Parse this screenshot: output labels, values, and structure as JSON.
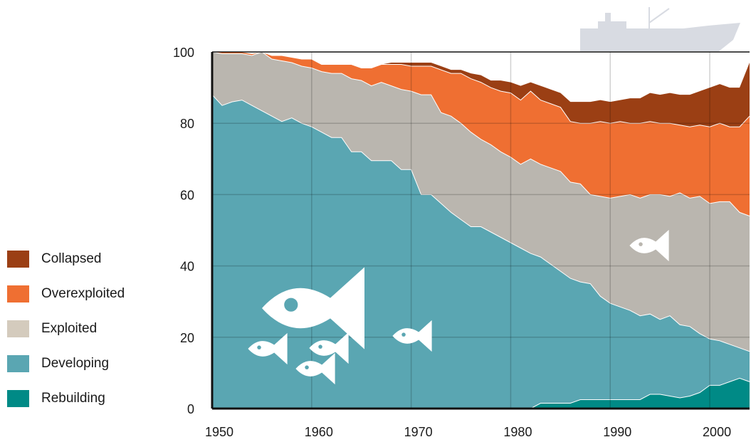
{
  "chart_data": {
    "type": "area",
    "stacked": true,
    "percent_stacked": true,
    "x": [
      1950,
      1951,
      1952,
      1953,
      1954,
      1955,
      1956,
      1957,
      1958,
      1959,
      1960,
      1961,
      1962,
      1963,
      1964,
      1965,
      1966,
      1967,
      1968,
      1969,
      1970,
      1971,
      1972,
      1973,
      1974,
      1975,
      1976,
      1977,
      1978,
      1979,
      1980,
      1981,
      1982,
      1983,
      1984,
      1985,
      1986,
      1987,
      1988,
      1989,
      1990,
      1991,
      1992,
      1993,
      1994,
      1995,
      1996,
      1997,
      1998,
      1999,
      2000,
      2001,
      2002,
      2003,
      2004
    ],
    "series": [
      {
        "name": "Rebuilding",
        "color": "#008a86",
        "values": [
          0,
          0,
          0,
          0,
          0,
          0,
          0,
          0,
          0,
          0,
          0,
          0,
          0,
          0,
          0,
          0,
          0,
          0,
          0,
          0,
          0,
          0,
          0,
          0,
          0,
          0,
          0,
          0,
          0,
          0,
          0,
          0,
          0,
          1.5,
          1.5,
          1.5,
          1.5,
          2.5,
          2.5,
          2.5,
          2.5,
          2.5,
          2.5,
          2.5,
          4,
          4,
          3.5,
          3,
          3.5,
          4.5,
          6.5,
          6.5,
          7.5,
          8.5,
          7.5
        ]
      },
      {
        "name": "Developing",
        "color": "#5aa6b2",
        "values": [
          88,
          85,
          86,
          86.5,
          85,
          83.5,
          82,
          80.5,
          81.5,
          80,
          79,
          77.5,
          76,
          76,
          72,
          72,
          69.5,
          69.5,
          69.5,
          67,
          67,
          60,
          60,
          57.5,
          55,
          53,
          51,
          51,
          49.5,
          48,
          46.5,
          45,
          43.5,
          41,
          39,
          37,
          35,
          33,
          32.5,
          29,
          27,
          26,
          25,
          23.5,
          22.5,
          21,
          22.5,
          20.5,
          19.5,
          16.5,
          13,
          12.5,
          10.5,
          8.5,
          8.5
        ]
      },
      {
        "name": "Exploited",
        "color": "#bab6af",
        "values": [
          12,
          14.5,
          13.5,
          13,
          14,
          16.5,
          16,
          17,
          15.5,
          16,
          16.5,
          17,
          18,
          18,
          20.5,
          20,
          21,
          22,
          21,
          22.5,
          22,
          28,
          28,
          25.5,
          27,
          27,
          26.5,
          24.5,
          24.5,
          24,
          24,
          23.5,
          26.5,
          26,
          27,
          28,
          27,
          27.5,
          25,
          28,
          29.5,
          31,
          32.5,
          33,
          33.5,
          35,
          33.5,
          37,
          36,
          38.5,
          38,
          39,
          40,
          38,
          38
        ]
      },
      {
        "name": "Overexploited",
        "color": "#ef6f32",
        "values": [
          0,
          0.5,
          0.5,
          0.5,
          0.5,
          0,
          1,
          1.5,
          1.5,
          2,
          2.5,
          2,
          2.5,
          2.5,
          4,
          3.5,
          5,
          5,
          6,
          7,
          7,
          8,
          8,
          12,
          12,
          14,
          15,
          16,
          16,
          17,
          18,
          18,
          19,
          18,
          18,
          18,
          17,
          17,
          20,
          21,
          21,
          21,
          20,
          21,
          20.5,
          20,
          20.5,
          19,
          20,
          20,
          21.5,
          22,
          21,
          24,
          28
        ]
      },
      {
        "name": "Collapsed",
        "color": "#9b3f14",
        "values": [
          0,
          0,
          0,
          0,
          0,
          0,
          0,
          0,
          0,
          0,
          0,
          0,
          0,
          0,
          0,
          0,
          0,
          0,
          0.5,
          0.5,
          1,
          1,
          1,
          1,
          1,
          1,
          1.5,
          2,
          2,
          3,
          3,
          4,
          2.5,
          4,
          4,
          4,
          5.5,
          6,
          6,
          6,
          6,
          6,
          7,
          7,
          8,
          8,
          8.5,
          8.5,
          9,
          9.5,
          11,
          11,
          11,
          11,
          15
        ]
      }
    ],
    "xlim": [
      1950,
      2004
    ],
    "ylim": [
      0,
      100
    ],
    "xticks": [
      "1950",
      "1960",
      "1970",
      "1980",
      "1990",
      "2000"
    ],
    "yticks": [
      "0",
      "20",
      "40",
      "60",
      "80",
      "100"
    ],
    "grid": true,
    "legend_position": "left"
  },
  "legend": [
    {
      "label": "Collapsed",
      "color": "#9b3f14"
    },
    {
      "label": "Overexploited",
      "color": "#ef6f32"
    },
    {
      "label": "Exploited",
      "color": "#d4cbbd"
    },
    {
      "label": "Developing",
      "color": "#5aa6b2"
    },
    {
      "label": "Rebuilding",
      "color": "#008a86"
    }
  ]
}
